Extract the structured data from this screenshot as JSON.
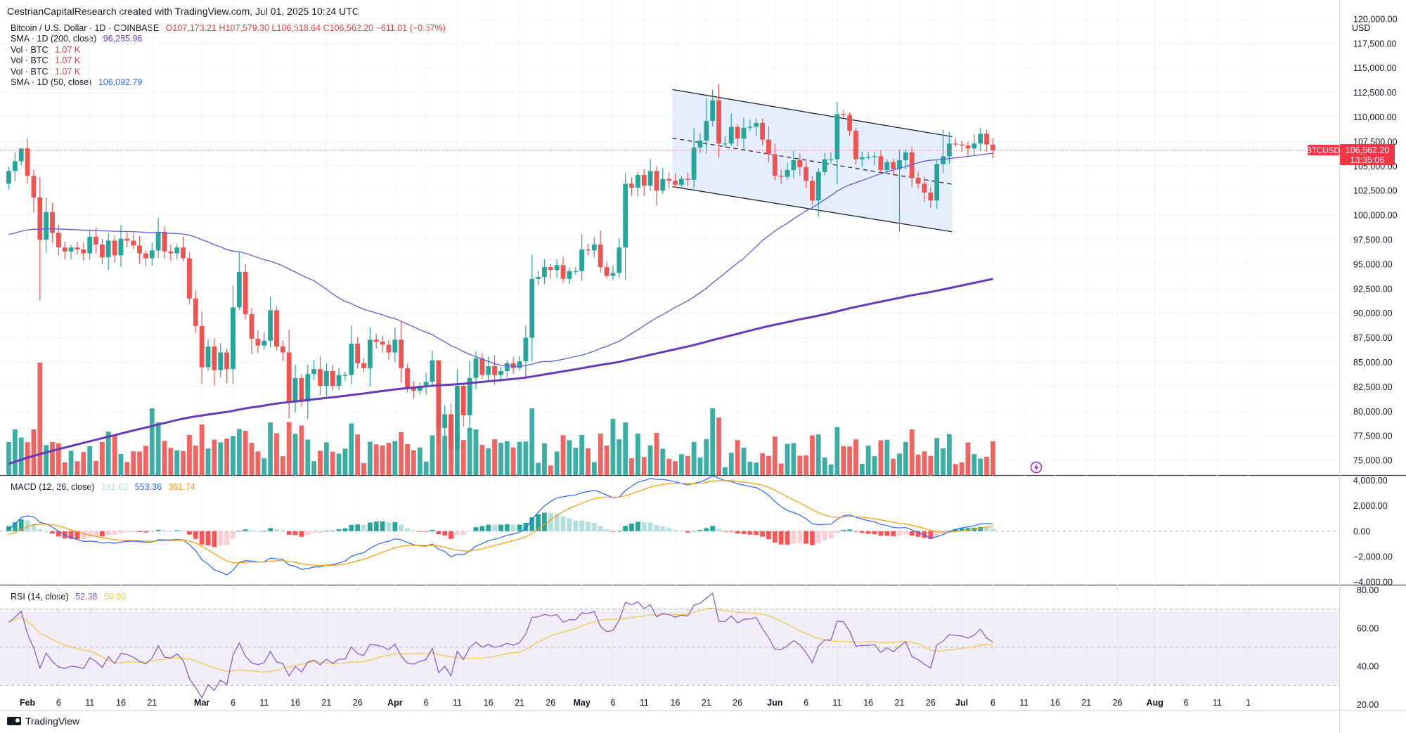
{
  "header": {
    "attribution": "CestrianCapitalResearch created with TradingView.com, Jul 01, 2025 10:24 UTC"
  },
  "legend": {
    "title": "Bitcoin / U.S. Dollar · 1D · COINBASE",
    "ohlc": {
      "o": "O107,173.21",
      "h": "H107,579.30",
      "l": "L106,518.64",
      "c": "C106,562.20",
      "chg": "−611.01 (−0.57%)"
    },
    "sma200_label": "SMA · 1D (200, close)",
    "sma200_value": "96,285.96",
    "vol_rows": [
      {
        "label": "Vol · BTC",
        "value": "1.07 K"
      },
      {
        "label": "Vol · BTC",
        "value": "1.07 K"
      },
      {
        "label": "Vol · BTC",
        "value": "1.07 K"
      }
    ],
    "sma50_label": "SMA · 1D (50, close)",
    "sma50_value": "106,092.79"
  },
  "macd_legend": {
    "label": "MACD (12, 26, close)",
    "hist": "191.62",
    "macd": "553.36",
    "signal": "361.74"
  },
  "rsi_legend": {
    "label": "RSI (14, close)",
    "rsi": "52.38",
    "ma": "50.93"
  },
  "price_tag": {
    "symbol": "BTCUSD",
    "price": "106,562.20",
    "countdown": "13:35:06"
  },
  "footer": {
    "brand": "TradingView"
  },
  "colors": {
    "up": "#26a69a",
    "down": "#ef5350",
    "sma50": "#5b5bd6",
    "sma200": "#673ab7",
    "macd": "#2962ff",
    "signal": "#ff9800",
    "rsi": "#7e57c2",
    "rsi_ma": "#f5c542",
    "channel_fill": "#dbe8fb"
  },
  "chart_data": {
    "type": "candlestick",
    "symbol": "BTCUSD",
    "currency_label": "USD",
    "ylim": [
      73500,
      121500
    ],
    "price_ticks": [
      "120,000.00",
      "117,500.00",
      "115,000.00",
      "112,500.00",
      "110,000.00",
      "107,500.00",
      "105,000.00",
      "102,500.00",
      "100,000.00",
      "97,500.00",
      "95,000.00",
      "92,500.00",
      "90,000.00",
      "87,500.00",
      "85,000.00",
      "82,500.00",
      "80,000.00",
      "77,500.00",
      "75,000.00"
    ],
    "x_ticks": [
      {
        "i": 3,
        "label": "Feb"
      },
      {
        "i": 8,
        "label": "6"
      },
      {
        "i": 13,
        "label": "11"
      },
      {
        "i": 18,
        "label": "16"
      },
      {
        "i": 23,
        "label": "21"
      },
      {
        "i": 31,
        "label": "Mar"
      },
      {
        "i": 36,
        "label": "6"
      },
      {
        "i": 41,
        "label": "11"
      },
      {
        "i": 46,
        "label": "16"
      },
      {
        "i": 51,
        "label": "21"
      },
      {
        "i": 56,
        "label": "26"
      },
      {
        "i": 62,
        "label": "Apr"
      },
      {
        "i": 67,
        "label": "6"
      },
      {
        "i": 72,
        "label": "11"
      },
      {
        "i": 77,
        "label": "16"
      },
      {
        "i": 82,
        "label": "21"
      },
      {
        "i": 87,
        "label": "26"
      },
      {
        "i": 92,
        "label": "May"
      },
      {
        "i": 97,
        "label": "6"
      },
      {
        "i": 102,
        "label": "11"
      },
      {
        "i": 107,
        "label": "16"
      },
      {
        "i": 112,
        "label": "21"
      },
      {
        "i": 117,
        "label": "26"
      },
      {
        "i": 123,
        "label": "Jun"
      },
      {
        "i": 128,
        "label": "6"
      },
      {
        "i": 133,
        "label": "11"
      },
      {
        "i": 138,
        "label": "16"
      },
      {
        "i": 143,
        "label": "21"
      },
      {
        "i": 148,
        "label": "26"
      },
      {
        "i": 153,
        "label": "Jul"
      },
      {
        "i": 158,
        "label": "6"
      },
      {
        "i": 163,
        "label": "11"
      },
      {
        "i": 168,
        "label": "16"
      },
      {
        "i": 173,
        "label": "21"
      },
      {
        "i": 178,
        "label": "26"
      },
      {
        "i": 184,
        "label": "Aug"
      },
      {
        "i": 189,
        "label": "6"
      },
      {
        "i": 194,
        "label": "11"
      },
      {
        "i": 199,
        "label": "1"
      }
    ],
    "closes": [
      104500,
      105500,
      106800,
      104000,
      101800,
      97500,
      100300,
      98200,
      96700,
      96300,
      96700,
      96500,
      96100,
      97800,
      97000,
      95700,
      97400,
      95900,
      97600,
      97400,
      96900,
      96100,
      95600,
      96400,
      98300,
      96300,
      96100,
      96700,
      95600,
      91500,
      88700,
      84500,
      86600,
      84200,
      86000,
      84300,
      90600,
      94200,
      89900,
      87400,
      86700,
      87200,
      90300,
      86600,
      86000,
      80900,
      83400,
      81000,
      83800,
      84300,
      82600,
      84100,
      82600,
      83700,
      83700,
      86900,
      84900,
      84400,
      87300,
      87100,
      86800,
      86000,
      87300,
      84400,
      82400,
      82100,
      82600,
      83000,
      85200,
      78300,
      79700,
      76200,
      82600,
      79600,
      83400,
      85400,
      83700,
      84600,
      83700,
      84100,
      84900,
      84400,
      85100,
      87500,
      93500,
      93700,
      94700,
      94400,
      94900,
      93500,
      94300,
      94300,
      96500,
      96400,
      97000,
      94700,
      93800,
      94100,
      96700,
      103200,
      102800,
      104100,
      103000,
      104500,
      102500,
      103700,
      103500,
      103100,
      103700,
      103600,
      106900,
      107600,
      109600,
      111700,
      107300,
      107300,
      109000,
      107800,
      108900,
      109000,
      109400,
      107700,
      106200,
      104000,
      103900,
      104600,
      105600,
      104900,
      103500,
      101500,
      104400,
      105700,
      105700,
      110300,
      110200,
      108600,
      105700,
      105900,
      105900,
      106000,
      104600,
      105400,
      104700,
      105600,
      106400,
      103800,
      103200,
      102300,
      101500,
      105200,
      106000,
      107300,
      107200,
      107100,
      106800,
      107300,
      108300,
      107200,
      106600
    ],
    "overlays": [
      "SMA 50",
      "SMA 200",
      "Descending channel"
    ],
    "indicators": [
      "Volume",
      "MACD (12, 26)",
      "RSI (14)"
    ],
    "macd_ticks": [
      "4,000.00",
      "2,000.00",
      "0.00",
      "−2,000.00",
      "−4,000.00"
    ],
    "macd_range": [
      -4100,
      4300
    ],
    "rsi_ticks": [
      "80.00",
      "60.00",
      "40.00",
      "20.00"
    ],
    "rsi_range": [
      18,
      82
    ]
  }
}
